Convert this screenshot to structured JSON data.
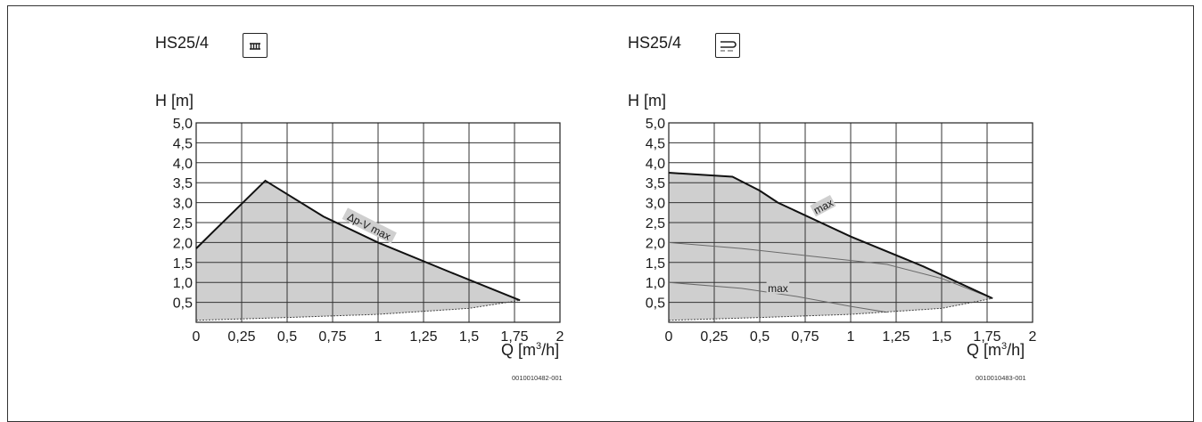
{
  "chart_data": [
    {
      "type": "area",
      "title": "HS25/4",
      "mode_icon": "radiator-icon",
      "ylabel": "H [m]",
      "xlabel": "Q [m³/h]",
      "xlabel_base": "Q [m",
      "xlabel_sup": "3",
      "xlabel_tail": "/h]",
      "xlim": [
        0,
        2
      ],
      "ylim": [
        0,
        5.0
      ],
      "x_ticks": [
        "0",
        "0,25",
        "0,5",
        "0,75",
        "1",
        "1,25",
        "1,5",
        "1,75",
        "2"
      ],
      "y_ticks": [
        "0,5",
        "1,0",
        "1,5",
        "2,0",
        "2,5",
        "3,0",
        "3,5",
        "4,0",
        "4,5",
        "5,0"
      ],
      "grid": true,
      "upper_curve": {
        "x": [
          0,
          0.1,
          0.38,
          0.7,
          1.0,
          1.4,
          1.78
        ],
        "y": [
          1.85,
          2.3,
          3.55,
          2.65,
          2.0,
          1.25,
          0.55
        ]
      },
      "lower_curve": {
        "x": [
          0,
          0.5,
          1.0,
          1.5,
          1.78
        ],
        "y": [
          0.05,
          0.12,
          0.2,
          0.35,
          0.55
        ]
      },
      "annotations": [
        {
          "text": "Δp-V max",
          "x": 0.95,
          "y": 2.4,
          "angle": 27
        }
      ],
      "code": "0010010482-001"
    },
    {
      "type": "area",
      "title": "HS25/4",
      "mode_icon": "underfloor-heating-icon",
      "ylabel": "H [m]",
      "xlabel": "Q [m³/h]",
      "xlabel_base": "Q [m",
      "xlabel_sup": "3",
      "xlabel_tail": "/h]",
      "xlim": [
        0,
        2
      ],
      "ylim": [
        0,
        5.0
      ],
      "x_ticks": [
        "0",
        "0,25",
        "0,5",
        "0,75",
        "1",
        "1,25",
        "1,5",
        "1,75",
        "2"
      ],
      "y_ticks": [
        "0,5",
        "1,0",
        "1,5",
        "2,0",
        "2,5",
        "3,0",
        "3,5",
        "4,0",
        "4,5",
        "5,0"
      ],
      "grid": true,
      "upper_curve": {
        "x": [
          0,
          0.35,
          0.5,
          0.6,
          1.0,
          1.4,
          1.78
        ],
        "y": [
          3.75,
          3.65,
          3.3,
          3.0,
          2.15,
          1.4,
          0.6
        ]
      },
      "lower_curve": {
        "x": [
          0,
          0.5,
          1.0,
          1.5,
          1.78
        ],
        "y": [
          0.05,
          0.12,
          0.2,
          0.35,
          0.6
        ]
      },
      "inner_curves": [
        {
          "x": [
            0,
            0.4,
            0.8,
            1.2,
            1.5,
            1.78
          ],
          "y": [
            2.0,
            1.85,
            1.65,
            1.45,
            1.1,
            0.6
          ]
        },
        {
          "x": [
            0,
            0.4,
            0.7,
            1.0,
            1.2
          ],
          "y": [
            1.0,
            0.85,
            0.65,
            0.4,
            0.25
          ]
        }
      ],
      "annotations": [
        {
          "text": "max",
          "x": 0.85,
          "y": 2.9,
          "angle": -28
        },
        {
          "text": "max",
          "x": 0.6,
          "y": 0.85,
          "angle": 0
        }
      ],
      "code": "0010010483-001"
    }
  ]
}
